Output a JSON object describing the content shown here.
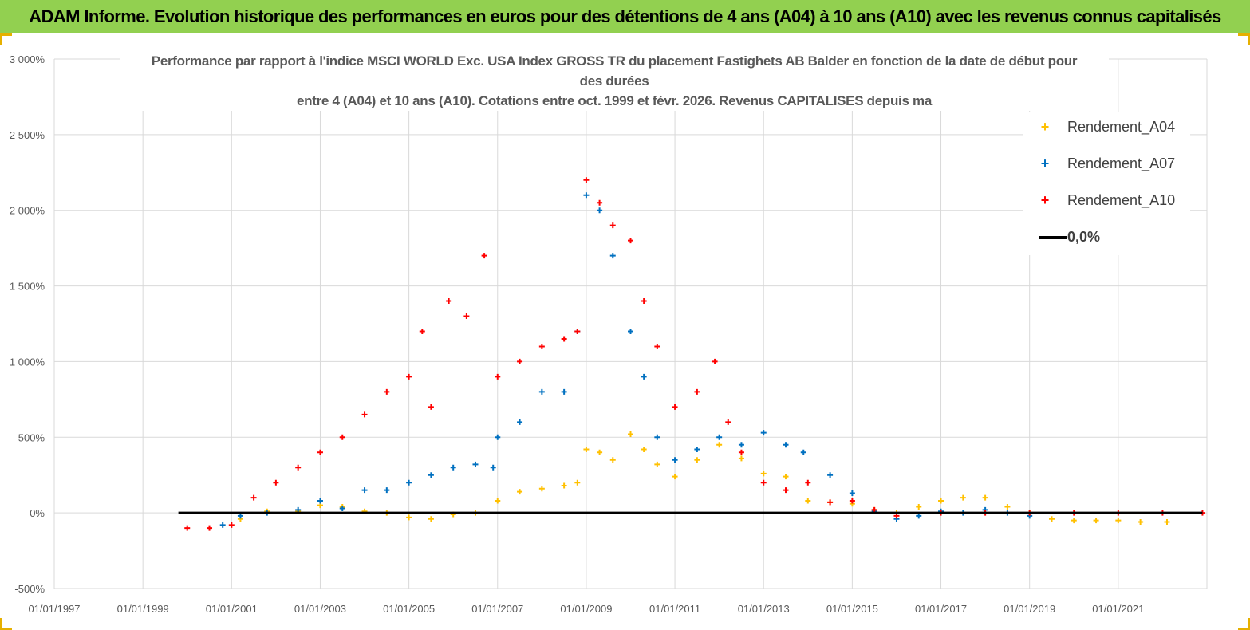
{
  "banner": {
    "title": "ADAM Informe. Evolution historique des performances en euros pour des détentions de 4 ans (A04) à 10 ans (A10) avec les revenus connus capitalisés"
  },
  "colors": {
    "banner_bg": "#92d050",
    "a04": "#ffc000",
    "a07": "#0070c0",
    "a10": "#ff0000",
    "zero_line": "#000000",
    "grid": "#d9d9d9"
  },
  "chart_data": {
    "type": "scatter",
    "title_lines": [
      "Performance par rapport à l'indice MSCI WORLD Exc. USA Index GROSS TR  du placement Fastighets AB Balder en fonction de la date de début pour",
      "des durées",
      "entre 4 (A04) et 10 ans (A10). Cotations entre oct. 1999 et févr. 2026. Revenus CAPITALISES depuis ma"
    ],
    "x_axis": {
      "type": "date",
      "range": [
        "01/01/1997",
        "01/01/2023"
      ],
      "tick_labels": [
        "01/01/1997",
        "01/01/1999",
        "01/01/2001",
        "01/01/2003",
        "01/01/2005",
        "01/01/2007",
        "01/01/2009",
        "01/01/2011",
        "01/01/2013",
        "01/01/2015",
        "01/01/2017",
        "01/01/2019",
        "01/01/2021"
      ],
      "tick_years": [
        1997,
        1999,
        2001,
        2003,
        2005,
        2007,
        2009,
        2011,
        2013,
        2015,
        2017,
        2019,
        2021
      ],
      "range_years": [
        1997,
        2023
      ]
    },
    "y_axis": {
      "unit": "%",
      "range": [
        -500,
        3000
      ],
      "tick_values": [
        3000,
        2500,
        2000,
        1500,
        1000,
        500,
        0,
        -500
      ],
      "tick_labels": [
        "3 000%",
        "2 500%",
        "2 000%",
        "1 500%",
        "1 000%",
        "500%",
        "0%",
        "-500%"
      ]
    },
    "legend": {
      "position": "top-right",
      "entries": [
        "Rendement_A04",
        "Rendement_A07",
        "Rendement_A10",
        "0,0%"
      ]
    },
    "zero_line": {
      "label": "0,0%",
      "value": 0,
      "x_start_year": 1999.8,
      "x_end_year": 2022.9
    },
    "series": [
      {
        "name": "Rendement_A04",
        "color": "#ffc000",
        "x_years": [
          2001.2,
          2001.8,
          2002.5,
          2003.0,
          2003.5,
          2004.0,
          2004.5,
          2005.0,
          2005.5,
          2006.0,
          2006.5,
          2007.0,
          2007.5,
          2008.0,
          2008.5,
          2008.8,
          2009.0,
          2009.3,
          2009.6,
          2010.0,
          2010.3,
          2010.6,
          2011.0,
          2011.5,
          2012.0,
          2012.5,
          2013.0,
          2013.5,
          2014.0,
          2014.5,
          2015.0,
          2015.5,
          2016.0,
          2016.5,
          2017.0,
          2017.5,
          2018.0,
          2018.5,
          2019.0,
          2019.5,
          2020.0,
          2020.5,
          2021.0,
          2021.5,
          2022.1
        ],
        "values": [
          -40,
          10,
          10,
          50,
          40,
          10,
          0,
          -30,
          -40,
          -10,
          0,
          80,
          140,
          160,
          180,
          200,
          420,
          400,
          350,
          520,
          420,
          320,
          240,
          350,
          450,
          360,
          260,
          240,
          80,
          70,
          60,
          20,
          0,
          40,
          80,
          100,
          100,
          40,
          0,
          -40,
          -50,
          -50,
          -50,
          -60,
          -60
        ]
      },
      {
        "name": "Rendement_A07",
        "color": "#0070c0",
        "x_years": [
          2000.8,
          2001.2,
          2001.8,
          2002.5,
          2003.0,
          2003.5,
          2004.0,
          2004.5,
          2005.0,
          2005.5,
          2006.0,
          2006.5,
          2006.9,
          2007.0,
          2007.5,
          2008.0,
          2008.5,
          2008.8,
          2009.0,
          2009.3,
          2009.6,
          2010.0,
          2010.3,
          2010.6,
          2011.0,
          2011.5,
          2012.0,
          2012.5,
          2013.0,
          2013.5,
          2013.9,
          2014.5,
          2015.0,
          2015.5,
          2016.0,
          2016.5,
          2017.0,
          2017.5,
          2018.0,
          2018.5,
          2019.0
        ],
        "values": [
          -80,
          -20,
          0,
          20,
          80,
          30,
          150,
          150,
          200,
          250,
          300,
          320,
          300,
          500,
          600,
          800,
          800,
          1200,
          2100,
          2000,
          1700,
          1200,
          900,
          500,
          350,
          420,
          500,
          450,
          530,
          450,
          400,
          250,
          130,
          10,
          -40,
          -20,
          10,
          0,
          20,
          0,
          -20
        ]
      },
      {
        "name": "Rendement_A10",
        "color": "#ff0000",
        "x_years": [
          2000.0,
          2000.5,
          2001.0,
          2001.5,
          2002.0,
          2002.5,
          2003.0,
          2003.5,
          2004.0,
          2004.5,
          2005.0,
          2005.3,
          2005.5,
          2005.9,
          2006.3,
          2006.7,
          2007.0,
          2007.5,
          2008.0,
          2008.5,
          2008.8,
          2009.0,
          2009.3,
          2009.6,
          2010.0,
          2010.3,
          2010.6,
          2011.0,
          2011.5,
          2011.9,
          2012.2,
          2012.5,
          2013.0,
          2013.5,
          2014.0,
          2014.5,
          2015.0,
          2015.5,
          2016.0,
          2017.0,
          2018.0,
          2019.0,
          2020.0,
          2021.0,
          2022.0,
          2022.9
        ],
        "values": [
          -100,
          -100,
          -80,
          100,
          200,
          300,
          400,
          500,
          650,
          800,
          900,
          1200,
          700,
          1400,
          1300,
          1700,
          900,
          1000,
          1100,
          1150,
          1200,
          2200,
          2050,
          1900,
          1800,
          1400,
          1100,
          700,
          800,
          1000,
          600,
          400,
          200,
          150,
          200,
          70,
          80,
          20,
          -20,
          0,
          0,
          0,
          0,
          0,
          0,
          0
        ]
      }
    ]
  }
}
